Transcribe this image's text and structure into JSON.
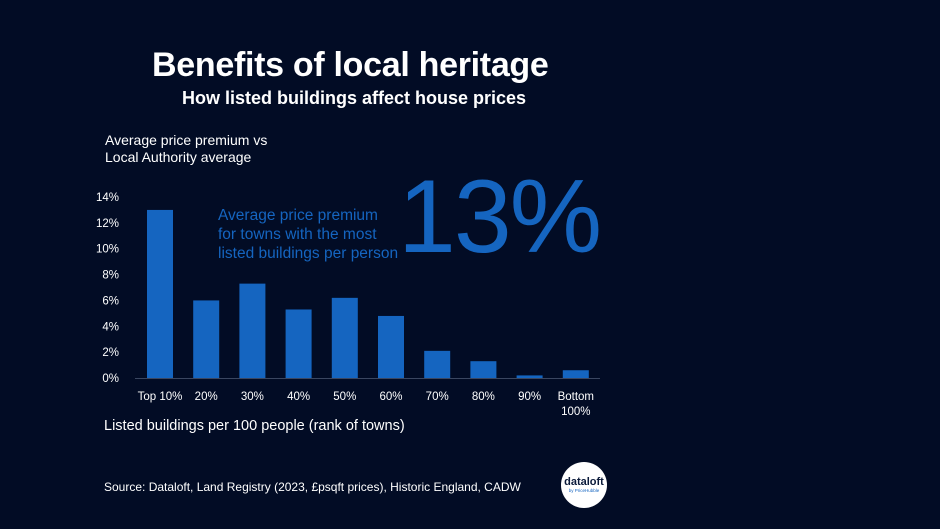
{
  "header": {
    "title": "Benefits of local heritage",
    "subtitle": "How listed buildings affect house prices"
  },
  "callout": {
    "text": "Average price premium\nfor towns with the most\nlisted buildings per person",
    "value": "13%"
  },
  "footer": {
    "source": "Source: Dataloft, Land Registry (2023, £psqft prices), Historic England, CADW",
    "logo_main": "dataloft",
    "logo_sub": "by PriceHubble"
  },
  "colors": {
    "background": "#020c25",
    "bar": "#1565c0",
    "accent": "#1565c0",
    "text": "#ffffff"
  },
  "chart_data": {
    "type": "bar",
    "title": "Benefits of local heritage",
    "subtitle": "How listed buildings affect house prices",
    "ylabel": "Average price premium vs\nLocal Authority average",
    "xlabel": "Listed buildings per 100 people (rank of towns)",
    "categories": [
      "Top 10%",
      "20%",
      "30%",
      "40%",
      "50%",
      "60%",
      "70%",
      "80%",
      "90%",
      "Bottom\n100%"
    ],
    "values": [
      13.0,
      6.0,
      7.3,
      5.3,
      6.2,
      4.8,
      2.1,
      1.3,
      0.2,
      0.6
    ],
    "ylim": [
      0,
      14
    ],
    "yticks": [
      0,
      2,
      4,
      6,
      8,
      10,
      12,
      14
    ],
    "ytick_labels": [
      "0%",
      "2%",
      "4%",
      "6%",
      "8%",
      "10%",
      "12%",
      "14%"
    ],
    "grid": false,
    "legend": "none"
  }
}
